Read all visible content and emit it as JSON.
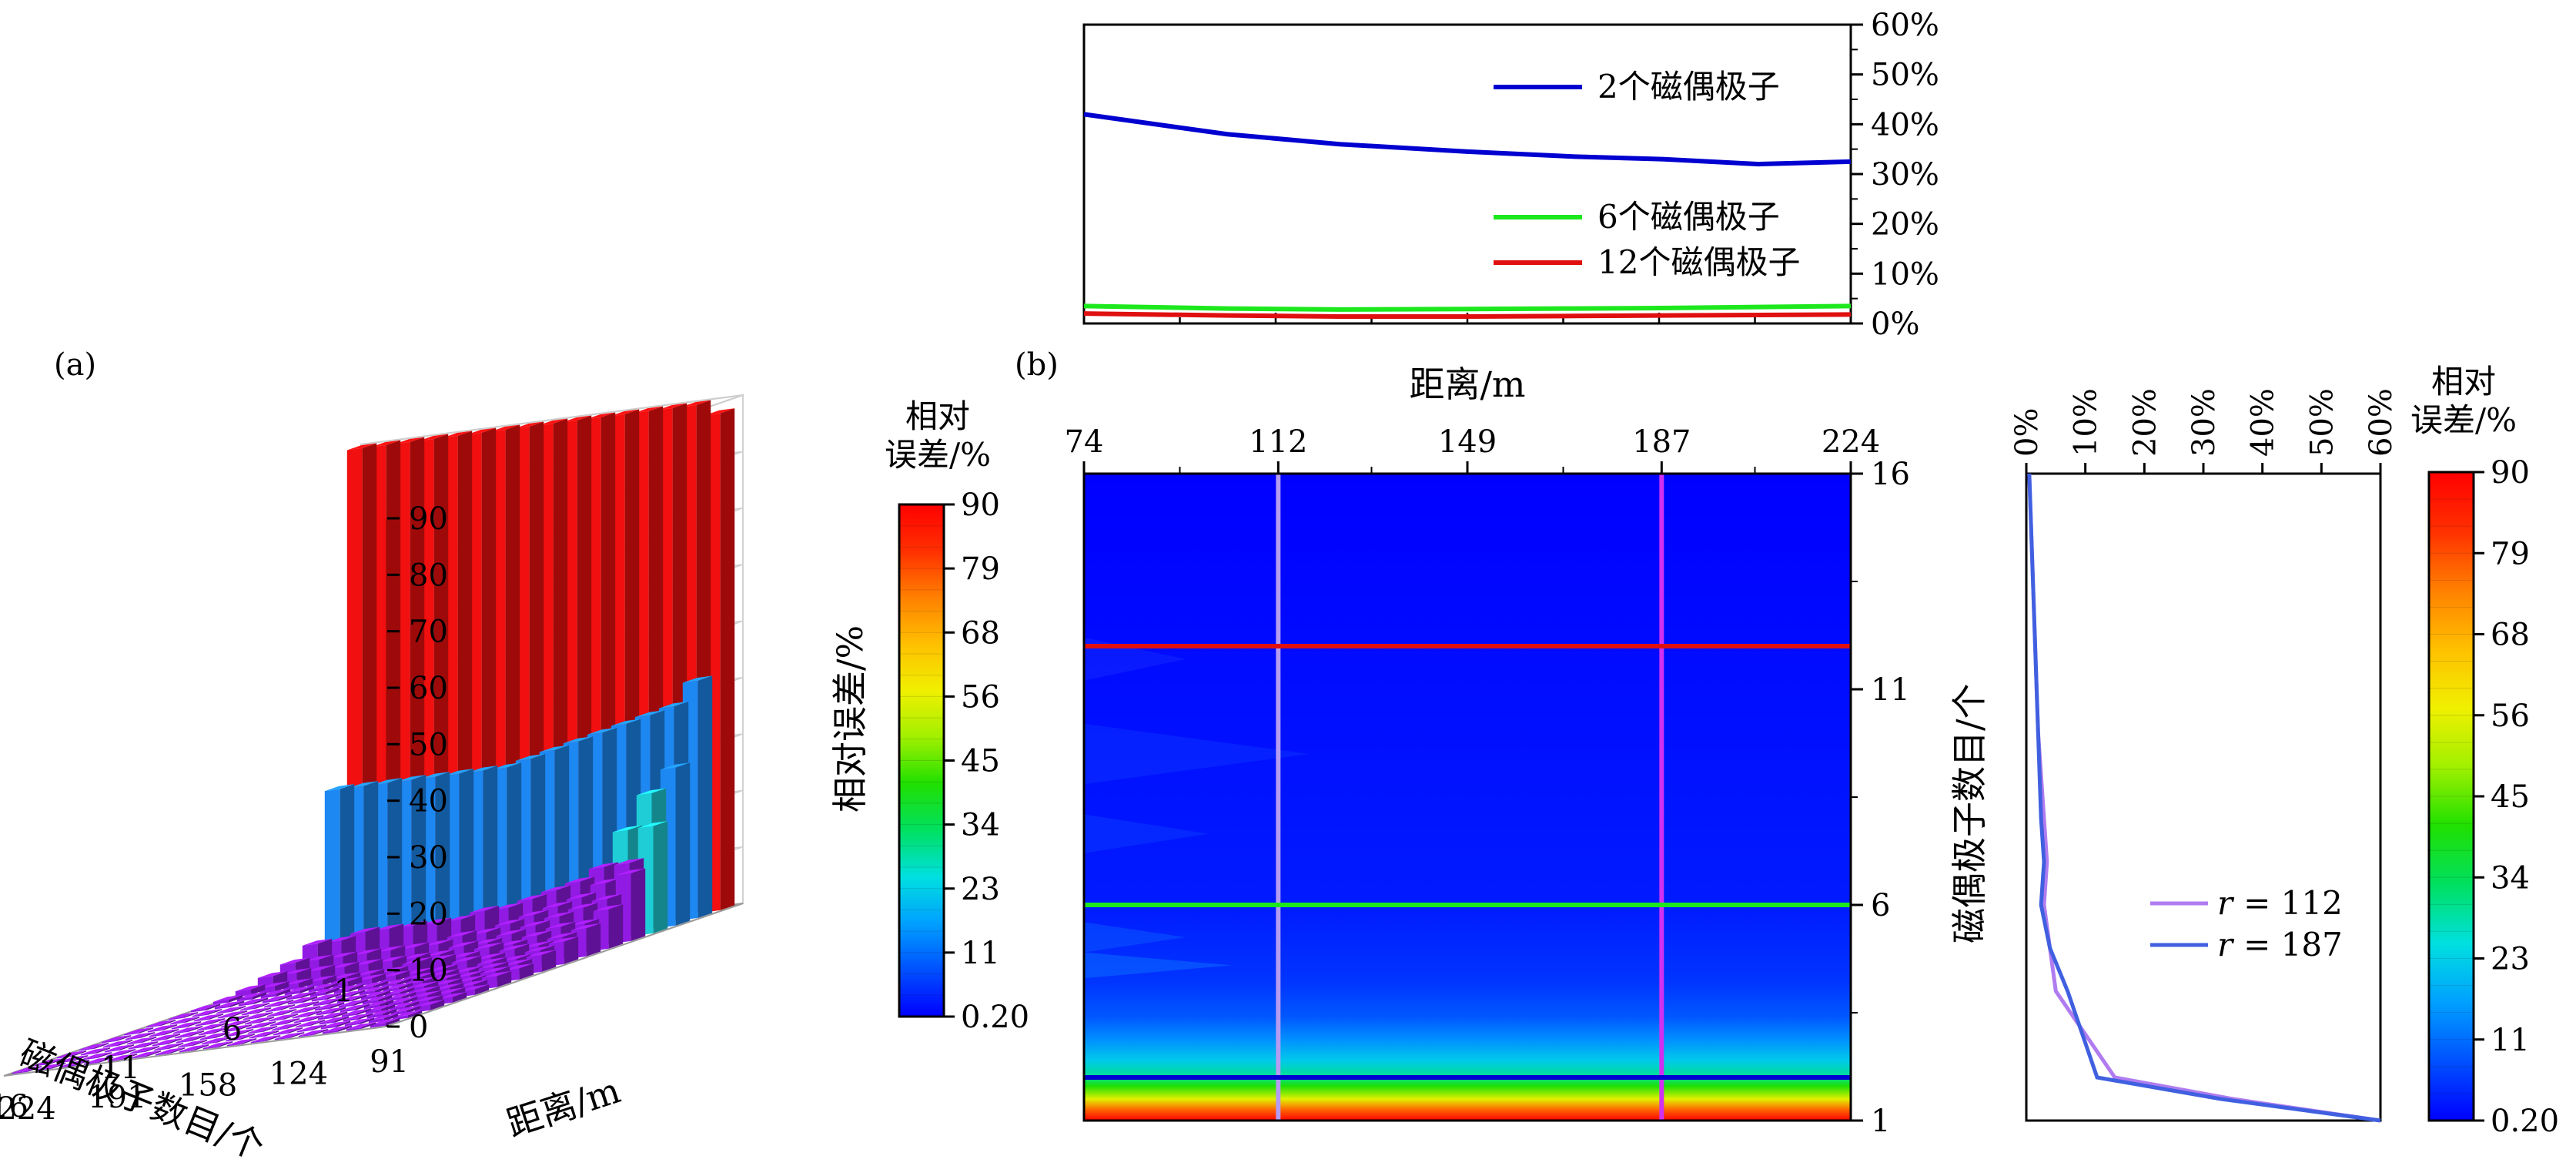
{
  "panel_labels": {
    "a": "(a)",
    "b": "(b)"
  },
  "colors": {
    "series_2": "#0000d0",
    "series_6": "#1de81d",
    "series_12": "#e01010",
    "line_r112": "#b07cf0",
    "line_r187": "#4060e0",
    "vline_112": "#b49cf2",
    "vline_187": "#d030f0"
  },
  "colormap": {
    "stops": [
      "#0000ff",
      "#0050ff",
      "#00a0ff",
      "#00e0e0",
      "#00e060",
      "#20e000",
      "#a0f000",
      "#f0f000",
      "#ffc000",
      "#ff8000",
      "#ff3000",
      "#ff0000"
    ]
  },
  "chart_data": [
    {
      "id": "a",
      "type": "bar",
      "subtype": "3d-bar",
      "xlabel": "磁偶极子数目/个",
      "ylabel": "距离/m",
      "zlabel": "相对误差/%",
      "x_ticks": [
        "1",
        "6",
        "11",
        "16"
      ],
      "y_ticks": [
        "224",
        "191",
        "158",
        "124",
        "91"
      ],
      "z_ticks": [
        "0",
        "10",
        "20",
        "30",
        "40",
        "50",
        "60",
        "70",
        "80",
        "90"
      ],
      "zlim": [
        0,
        90
      ],
      "rows": [
        {
          "dipoles": 1,
          "values": [
            90,
            90,
            90,
            90,
            90,
            90,
            90,
            90,
            90,
            90,
            90,
            90,
            90,
            90,
            90,
            88
          ]
        },
        {
          "dipoles": 2,
          "values": [
            31,
            31,
            31,
            31,
            31,
            31,
            31,
            31,
            32,
            33,
            34,
            35,
            36,
            37,
            38,
            42
          ]
        },
        {
          "dipoles": 3,
          "values": [
            5,
            5,
            6,
            6,
            6,
            6,
            6,
            7,
            7,
            8,
            9,
            10,
            12,
            18,
            24,
            28
          ]
        },
        {
          "dipoles": 4,
          "values": [
            3,
            3,
            3,
            3,
            3,
            3,
            3,
            4,
            4,
            5,
            6,
            7,
            8,
            10,
            13,
            19
          ]
        },
        {
          "dipoles": 5,
          "values": [
            2,
            2,
            2,
            2,
            2,
            2,
            2,
            2,
            3,
            3,
            4,
            5,
            6,
            7,
            8,
            12
          ]
        },
        {
          "dipoles": 6,
          "values": [
            1,
            1,
            1,
            1,
            1,
            1,
            1,
            2,
            2,
            2,
            3,
            3,
            4,
            5,
            5,
            7
          ]
        },
        {
          "dipoles": 7,
          "values": [
            0.5,
            0.5,
            0.5,
            0.5,
            0.5,
            1,
            1,
            1,
            1,
            1,
            2,
            2,
            3,
            3,
            4,
            5
          ]
        },
        {
          "dipoles": 8,
          "values": [
            0.3,
            0.3,
            0.3,
            0.3,
            0.3,
            0.5,
            0.5,
            0.5,
            0.5,
            1,
            1,
            1,
            2,
            2,
            3,
            4
          ]
        },
        {
          "dipoles": 9,
          "values": [
            0.2,
            0.2,
            0.2,
            0.2,
            0.2,
            0.3,
            0.3,
            0.3,
            0.5,
            0.5,
            1,
            1,
            1,
            2,
            2,
            3
          ]
        },
        {
          "dipoles": 10,
          "values": [
            0.2,
            0.2,
            0.2,
            0.2,
            0.2,
            0.2,
            0.2,
            0.3,
            0.3,
            0.5,
            0.5,
            1,
            1,
            1,
            2,
            2
          ]
        },
        {
          "dipoles": 11,
          "values": [
            0.2,
            0.2,
            0.2,
            0.2,
            0.2,
            0.2,
            0.2,
            0.2,
            0.3,
            0.3,
            0.5,
            0.5,
            1,
            1,
            1,
            2
          ]
        },
        {
          "dipoles": 12,
          "values": [
            0.2,
            0.2,
            0.2,
            0.2,
            0.2,
            0.2,
            0.2,
            0.2,
            0.2,
            0.3,
            0.3,
            0.5,
            0.5,
            1,
            1,
            1
          ]
        },
        {
          "dipoles": 13,
          "values": [
            0.2,
            0.2,
            0.2,
            0.2,
            0.2,
            0.2,
            0.2,
            0.2,
            0.2,
            0.2,
            0.3,
            0.3,
            0.5,
            0.5,
            1,
            1
          ]
        },
        {
          "dipoles": 14,
          "values": [
            0.2,
            0.2,
            0.2,
            0.2,
            0.2,
            0.2,
            0.2,
            0.2,
            0.2,
            0.2,
            0.2,
            0.3,
            0.3,
            0.5,
            0.5,
            1
          ]
        },
        {
          "dipoles": 15,
          "values": [
            0.2,
            0.2,
            0.2,
            0.2,
            0.2,
            0.2,
            0.2,
            0.2,
            0.2,
            0.2,
            0.2,
            0.2,
            0.3,
            0.3,
            0.5,
            0.5
          ]
        },
        {
          "dipoles": 16,
          "values": [
            0.2,
            0.2,
            0.2,
            0.2,
            0.2,
            0.2,
            0.2,
            0.2,
            0.2,
            0.2,
            0.2,
            0.2,
            0.2,
            0.3,
            0.3,
            0.5
          ]
        }
      ],
      "colorbar": {
        "title": "相对\n误差/%",
        "title_lines": [
          "相对",
          "误差/%"
        ],
        "ticks": [
          "90",
          "79",
          "68",
          "56",
          "45",
          "34",
          "23",
          "11",
          "0.20"
        ]
      }
    },
    {
      "id": "b-top",
      "type": "line",
      "xlabel": "距离/m",
      "x": [
        74,
        102,
        124,
        149,
        170,
        187,
        206,
        224
      ],
      "ylim": [
        0,
        60
      ],
      "y_ticks": [
        "0%",
        "10%",
        "20%",
        "30%",
        "40%",
        "50%",
        "60%"
      ],
      "series": [
        {
          "name": "2个磁偶极子",
          "values": [
            42,
            38,
            36,
            34.5,
            33.5,
            33,
            32,
            32.5
          ]
        },
        {
          "name": "6个磁偶极子",
          "values": [
            3.5,
            3,
            2.8,
            2.9,
            3,
            3.1,
            3.3,
            3.5
          ]
        },
        {
          "name": "12个磁偶极子",
          "values": [
            2.0,
            1.6,
            1.4,
            1.4,
            1.5,
            1.6,
            1.7,
            1.8
          ]
        }
      ]
    },
    {
      "id": "b-main",
      "type": "heatmap",
      "x_ticks": [
        "74",
        "112",
        "149",
        "187",
        "224"
      ],
      "xlim": [
        74,
        224
      ],
      "y_ticks": [
        "1",
        "6",
        "11",
        "16"
      ],
      "ylim": [
        1,
        16
      ],
      "ylabel": "磁偶极子数目/个",
      "rows_by_dipole": [
        {
          "dipoles": 1,
          "value": 90
        },
        {
          "dipoles": 2,
          "value": 32
        },
        {
          "dipoles": 3,
          "value": 5
        },
        {
          "dipoles": 4,
          "value": 2
        },
        {
          "dipoles": 5,
          "value": 1
        },
        {
          "dipoles": 6,
          "value": 0.5
        },
        {
          "dipoles": 8,
          "value": 0.3
        },
        {
          "dipoles": 16,
          "value": 0.2
        }
      ],
      "markers": {
        "vertical": [
          112,
          187
        ],
        "horizontal": [
          2,
          6,
          12
        ]
      }
    },
    {
      "id": "b-right",
      "type": "line",
      "xlim": [
        0,
        60
      ],
      "x_ticks": [
        "0%",
        "10%",
        "20%",
        "30%",
        "40%",
        "50%",
        "60%"
      ],
      "ylim": [
        1,
        16
      ],
      "series": [
        {
          "name": "r = 112",
          "name_var": "r",
          "name_value": "= 112",
          "points": [
            [
              0.5,
              16
            ],
            [
              1,
              14
            ],
            [
              1.5,
              12
            ],
            [
              2,
              10
            ],
            [
              3,
              8
            ],
            [
              3.5,
              7
            ],
            [
              3,
              6
            ],
            [
              4,
              5
            ],
            [
              5,
              4
            ],
            [
              15,
              2
            ],
            [
              35,
              1.5
            ],
            [
              60,
              1
            ]
          ]
        },
        {
          "name": "r = 187",
          "name_var": "r",
          "name_value": "= 187",
          "points": [
            [
              0.5,
              16
            ],
            [
              1,
              14
            ],
            [
              1.5,
              12
            ],
            [
              2,
              10
            ],
            [
              2.5,
              8
            ],
            [
              3,
              7
            ],
            [
              2.5,
              6
            ],
            [
              4,
              5
            ],
            [
              7,
              4
            ],
            [
              12,
              2
            ],
            [
              33,
              1.5
            ],
            [
              60,
              1
            ]
          ]
        }
      ],
      "colorbar": {
        "title_lines": [
          "相对",
          "误差/%"
        ],
        "ticks": [
          "90",
          "79",
          "68",
          "56",
          "45",
          "34",
          "23",
          "11",
          "0.20"
        ]
      }
    }
  ]
}
